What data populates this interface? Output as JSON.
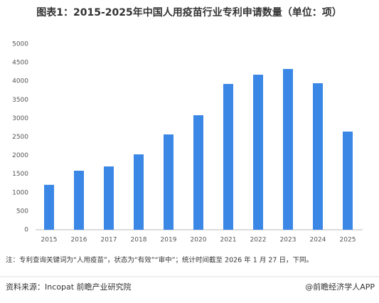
{
  "chart_data": {
    "type": "bar",
    "title": "图表1：2015-2025年中国人用疫苗行业专利申请数量（单位：项）",
    "categories": [
      "2015",
      "2016",
      "2017",
      "2018",
      "2019",
      "2020",
      "2021",
      "2022",
      "2023",
      "2024",
      "2025"
    ],
    "values": [
      1210,
      1590,
      1705,
      2030,
      2567,
      3084,
      3927,
      4176,
      4330,
      3946,
      2644
    ],
    "color": "#3b87e6",
    "ylim": [
      0,
      5000
    ],
    "yticks": [
      0,
      500,
      1000,
      1500,
      2000,
      2500,
      3000,
      3500,
      4000,
      4500,
      5000
    ],
    "grid": false
  },
  "note": "注：专利查询关键词为“人用疫苗”，状态为“有效”“审中”；统计时间截至 2026 年 1 月 27 日，下同。",
  "source": "资料来源：Incopat  前瞻产业研究院",
  "credit": "@前瞻经济学人APP"
}
